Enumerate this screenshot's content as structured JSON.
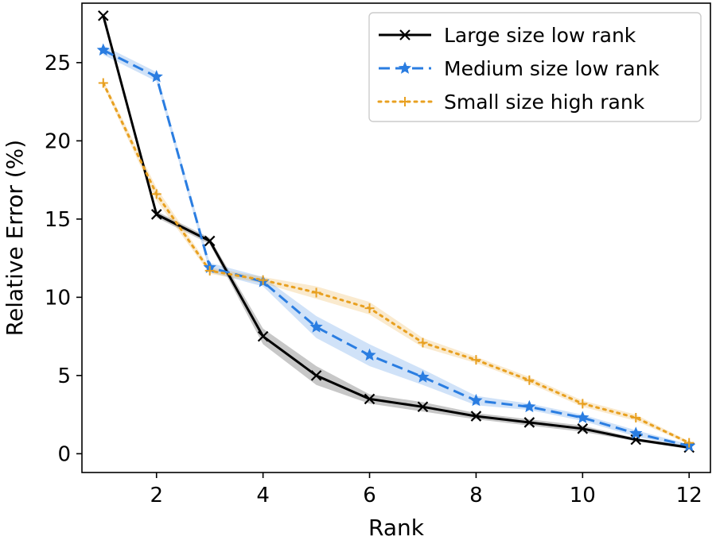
{
  "chart_data": {
    "type": "line",
    "title": "",
    "xlabel": "Rank",
    "ylabel": "Relative Error (%)",
    "xlim": [
      0.6,
      12.4
    ],
    "ylim": [
      -1.2,
      28.8
    ],
    "x_ticks": [
      2,
      4,
      6,
      8,
      10,
      12
    ],
    "y_ticks": [
      0,
      5,
      10,
      15,
      20,
      25
    ],
    "grid": false,
    "legend_position": "top-right",
    "x": [
      1,
      2,
      3,
      4,
      5,
      6,
      7,
      8,
      9,
      10,
      11,
      12
    ],
    "series": [
      {
        "name": "Large size low rank",
        "color": "#000000",
        "style": "solid",
        "marker": "x",
        "values": [
          28.0,
          15.3,
          13.6,
          7.5,
          5.0,
          3.5,
          3.0,
          2.4,
          2.0,
          1.6,
          0.9,
          0.4
        ],
        "band": [
          0.2,
          0.2,
          0.2,
          0.5,
          0.6,
          0.3,
          0.3,
          0.2,
          0.2,
          0.2,
          0.1,
          0.1
        ]
      },
      {
        "name": "Medium size low rank",
        "color": "#2a7de1",
        "style": "dashed",
        "marker": "star",
        "values": [
          25.8,
          24.1,
          11.9,
          11.0,
          8.1,
          6.3,
          4.9,
          3.4,
          3.0,
          2.3,
          1.3,
          0.5
        ],
        "band": [
          0.3,
          0.3,
          0.3,
          0.3,
          0.7,
          0.7,
          0.5,
          0.3,
          0.2,
          0.2,
          0.2,
          0.1
        ]
      },
      {
        "name": "Small size high rank",
        "color": "#e8a020",
        "style": "dotted",
        "marker": "plus",
        "values": [
          23.7,
          16.6,
          11.7,
          11.1,
          10.3,
          9.3,
          7.1,
          6.0,
          4.7,
          3.2,
          2.3,
          0.7
        ],
        "band": [
          0.2,
          0.4,
          0.2,
          0.2,
          0.4,
          0.4,
          0.3,
          0.2,
          0.2,
          0.2,
          0.2,
          0.1
        ]
      }
    ]
  }
}
